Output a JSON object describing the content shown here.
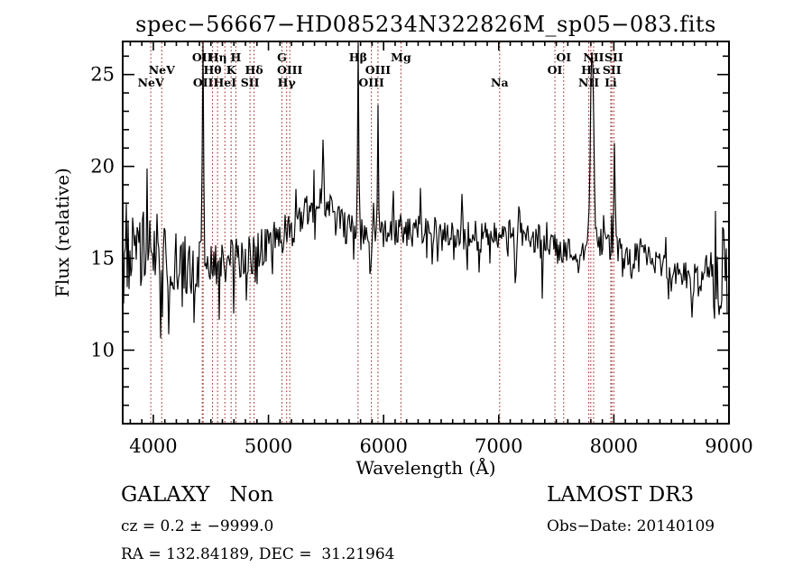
{
  "title": "spec−56667−HD085234N322826M_sp05−083.fits",
  "annotations": {
    "class_label": "GALAXY   Non",
    "survey": "LAMOST DR3",
    "cz_line": "cz = 0.2 ± −9999.0",
    "obs_date": "Obs−Date: 20140109",
    "radec": "RA = 132.84189, DEC =  31.21964"
  },
  "chart_data": {
    "type": "line",
    "title": "spec−56667−HD085234N322826M_sp05−083.fits",
    "xlabel": "Wavelength (Å)",
    "ylabel": "Flux (relative)",
    "xlim": [
      3734,
      9000
    ],
    "ylim": [
      6,
      26.8
    ],
    "x_ticks": [
      4000,
      5000,
      6000,
      7000,
      8000,
      9000
    ],
    "x_minor_step": 100,
    "y_ticks": [
      10,
      15,
      20,
      25
    ],
    "y_minor_step": 1,
    "grid": false,
    "line_color": "#000000",
    "marker_color": "#9e3434",
    "spectral_lines": [
      {
        "label": "NeV",
        "row": 3,
        "wl": [
          3978
        ]
      },
      {
        "label": "NeV",
        "row": 2,
        "wl": [
          4073
        ]
      },
      {
        "label": "OII",
        "row": 1,
        "wl": [
          4425
        ]
      },
      {
        "label": "OII",
        "row": 3,
        "wl": [
          4433
        ]
      },
      {
        "label": "Hθ",
        "row": 2,
        "wl": [
          4514
        ]
      },
      {
        "label": "Hη",
        "row": 1,
        "wl": [
          4558
        ]
      },
      {
        "label": "HeI",
        "row": 3,
        "wl": [
          4622
        ]
      },
      {
        "label": "K",
        "row": 2,
        "wl": [
          4676
        ]
      },
      {
        "label": "H",
        "row": 1,
        "wl": [
          4717
        ]
      },
      {
        "label": "SII",
        "row": 3,
        "wl": [
          4840
        ]
      },
      {
        "label": "Hδ",
        "row": 2,
        "wl": [
          4875
        ]
      },
      {
        "label": "G",
        "row": 1,
        "wl": [
          5117
        ]
      },
      {
        "label": "Hγ",
        "row": 3,
        "wl": [
          5158
        ]
      },
      {
        "label": "OIII",
        "row": 2,
        "wl": [
          5185
        ]
      },
      {
        "label": "Hβ",
        "row": 1,
        "wl": [
          5778
        ]
      },
      {
        "label": "OIII",
        "row": 3,
        "wl": [
          5894
        ]
      },
      {
        "label": "OIII",
        "row": 2,
        "wl": [
          5951
        ]
      },
      {
        "label": "Mg",
        "row": 1,
        "wl": [
          6151
        ]
      },
      {
        "label": "Na",
        "row": 3,
        "wl": [
          7008
        ]
      },
      {
        "label": "OI",
        "row": 2,
        "wl": [
          7488
        ]
      },
      {
        "label": "OI",
        "row": 1,
        "wl": [
          7564
        ]
      },
      {
        "label": "NII",
        "row": 3,
        "wl": [
          7782
        ]
      },
      {
        "label": "Hα",
        "row": 2,
        "wl": [
          7800
        ]
      },
      {
        "label": "NII",
        "row": 1,
        "wl": [
          7824
        ]
      },
      {
        "label": "Li",
        "row": 3,
        "wl": [
          7973
        ]
      },
      {
        "label": "SII",
        "row": 2,
        "wl": [
          7983
        ]
      },
      {
        "label": "SII",
        "row": 1,
        "wl": [
          8000
        ]
      }
    ],
    "continuum": [
      [
        3740,
        14.6
      ],
      [
        3800,
        15.2
      ],
      [
        3920,
        15.4
      ],
      [
        4040,
        15.3
      ],
      [
        4160,
        14.9
      ],
      [
        4270,
        14.6
      ],
      [
        4390,
        14.6
      ],
      [
        4510,
        14.5
      ],
      [
        4630,
        14.7
      ],
      [
        4740,
        15.1
      ],
      [
        4860,
        15.3
      ],
      [
        4980,
        15.6
      ],
      [
        5100,
        16.1
      ],
      [
        5220,
        16.7
      ],
      [
        5330,
        17.5
      ],
      [
        5430,
        18.2
      ],
      [
        5490,
        18.0
      ],
      [
        5570,
        17.2
      ],
      [
        5690,
        16.5
      ],
      [
        5800,
        16.3
      ],
      [
        5920,
        16.0
      ],
      [
        6040,
        16.5
      ],
      [
        6160,
        16.6
      ],
      [
        6270,
        16.4
      ],
      [
        6390,
        16.6
      ],
      [
        6510,
        16.2
      ],
      [
        6630,
        16.0
      ],
      [
        6740,
        16.3
      ],
      [
        6860,
        16.1
      ],
      [
        6980,
        16.4
      ],
      [
        7100,
        16.3
      ],
      [
        7210,
        16.2
      ],
      [
        7330,
        15.9
      ],
      [
        7450,
        15.7
      ],
      [
        7570,
        15.4
      ],
      [
        7680,
        15.2
      ],
      [
        7800,
        15.4
      ],
      [
        7900,
        16.0
      ],
      [
        8000,
        15.6
      ],
      [
        8120,
        15.1
      ],
      [
        8230,
        15.3
      ],
      [
        8350,
        14.9
      ],
      [
        8470,
        14.6
      ],
      [
        8580,
        14.1
      ],
      [
        8690,
        13.9
      ],
      [
        8780,
        14.5
      ],
      [
        8880,
        14.6
      ],
      [
        8940,
        14.3
      ],
      [
        8990,
        13.0
      ]
    ],
    "noise_profile": [
      [
        3740,
        2.4
      ],
      [
        3950,
        2.2
      ],
      [
        4160,
        1.9
      ],
      [
        4350,
        1.55
      ],
      [
        4510,
        1.4
      ],
      [
        4750,
        1.25
      ],
      [
        4980,
        1.15
      ],
      [
        5215,
        1.0
      ],
      [
        5490,
        0.95
      ],
      [
        5800,
        0.9
      ],
      [
        6200,
        0.85
      ],
      [
        6600,
        0.9
      ],
      [
        6980,
        0.85
      ],
      [
        7330,
        0.9
      ],
      [
        7720,
        0.8
      ],
      [
        8120,
        0.85
      ],
      [
        8500,
        0.8
      ],
      [
        8700,
        0.9
      ],
      [
        8790,
        1.3
      ],
      [
        8900,
        2.6
      ],
      [
        8950,
        3.2
      ],
      [
        8992,
        2.4
      ]
    ],
    "features": [
      [
        4431,
        12.5,
        5
      ],
      [
        5473,
        2.8,
        6
      ],
      [
        5779,
        10.5,
        5
      ],
      [
        5915,
        2.4,
        4
      ],
      [
        5952,
        6.2,
        5
      ],
      [
        6085,
        2.3,
        5
      ],
      [
        6320,
        2.0,
        5
      ],
      [
        6680,
        1.9,
        5
      ],
      [
        7174,
        1.8,
        5
      ],
      [
        7810,
        11.5,
        14
      ],
      [
        8005,
        5.9,
        6
      ],
      [
        4060,
        -3.8,
        5
      ],
      [
        4135,
        -4.2,
        5
      ],
      [
        4355,
        -2.8,
        5
      ],
      [
        4575,
        -2.2,
        4
      ],
      [
        5885,
        -3.0,
        4
      ],
      [
        6470,
        -2.0,
        4
      ],
      [
        6830,
        -2.2,
        4
      ],
      [
        7145,
        -2.4,
        4
      ],
      [
        7380,
        -2.5,
        4
      ],
      [
        7690,
        -1.8,
        4
      ],
      [
        8150,
        -2.0,
        4
      ],
      [
        8590,
        -1.6,
        4
      ],
      [
        8680,
        -2.2,
        4
      ],
      [
        8870,
        -3.2,
        5
      ]
    ]
  }
}
